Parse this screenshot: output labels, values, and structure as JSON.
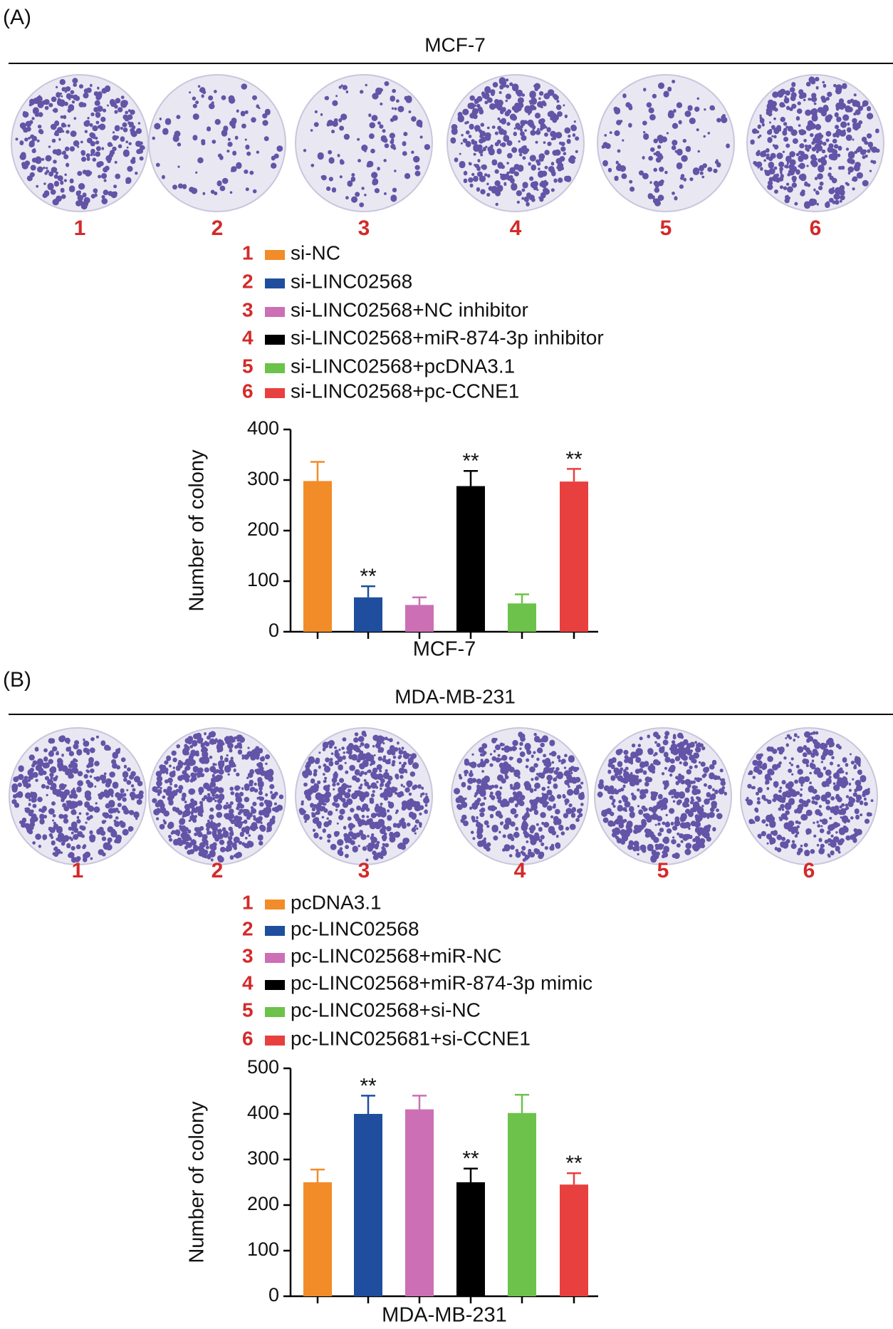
{
  "chart_data": [
    {
      "type": "bar",
      "panel": "(A)",
      "title": "MCF-7",
      "plate_labels": [
        "1",
        "2",
        "3",
        "4",
        "5",
        "6"
      ],
      "categories": [
        "si-NC",
        "si-LINC02568",
        "si-LINC02568+NC inhibitor",
        "si-LINC02568+miR-874-3p inhibitor",
        "si-LINC02568+pcDNA3.1",
        "si-LINC02568+pc-CCNE1"
      ],
      "colors": [
        "#f28c28",
        "#1f4e9e",
        "#cc6fb5",
        "#000000",
        "#6cc24a",
        "#e8403f"
      ],
      "values": [
        298,
        68,
        53,
        288,
        56,
        297
      ],
      "errors": [
        38,
        22,
        15,
        30,
        18,
        25
      ],
      "annotations": [
        null,
        "**",
        null,
        "**",
        null,
        "**"
      ],
      "xlabel": "MCF-7",
      "ylabel": "Number of colony",
      "ylim": [
        0,
        400
      ],
      "yticks": [
        0,
        100,
        200,
        300,
        400
      ]
    },
    {
      "type": "bar",
      "panel": "(B)",
      "title": "MDA-MB-231",
      "plate_labels": [
        "1",
        "2",
        "3",
        "4",
        "5",
        "6"
      ],
      "categories": [
        "pcDNA3.1",
        "pc-LINC02568",
        "pc-LINC02568+miR-NC",
        "pc-LINC02568+miR-874-3p mimic",
        "pc-LINC02568+si-NC",
        "pc-LINC025681+si-CCNE1"
      ],
      "colors": [
        "#f28c28",
        "#1f4e9e",
        "#cc6fb5",
        "#000000",
        "#6cc24a",
        "#e8403f"
      ],
      "values": [
        250,
        400,
        410,
        250,
        402,
        245
      ],
      "errors": [
        28,
        40,
        30,
        30,
        40,
        25
      ],
      "annotations": [
        null,
        "**",
        null,
        "**",
        null,
        "**"
      ],
      "xlabel": "MDA-MB-231",
      "ylabel": "Number of colony",
      "ylim": [
        0,
        500
      ],
      "yticks": [
        0,
        100,
        200,
        300,
        400,
        500
      ]
    }
  ]
}
